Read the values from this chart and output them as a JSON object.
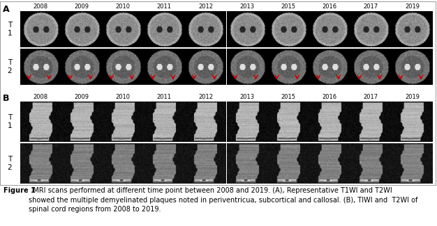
{
  "years": [
    "2008",
    "2009",
    "2010",
    "2011",
    "2012",
    "2013",
    "2015",
    "2016",
    "2017",
    "2019"
  ],
  "section_A_label": "A",
  "section_B_label": "B",
  "caption_bold": "Figure 1",
  "caption_normal": "  MRI scans performed at different time point between 2008 and 2019. (A), Representative T1WI and T2WI\nshowed the multiple demyelinated plaques noted in periventricua, subcortical and callosal. (B), TIWI and  T2WI of\nspinal cord regions from 2008 to 2019.",
  "red_arrow_color": "#cc0000",
  "caption_fontsize": 7.0,
  "year_fontsize": 6.0,
  "label_fontsize": 7.5,
  "section_label_fontsize": 9,
  "fig_background": "#ffffff",
  "outer_border_color": "#999999"
}
